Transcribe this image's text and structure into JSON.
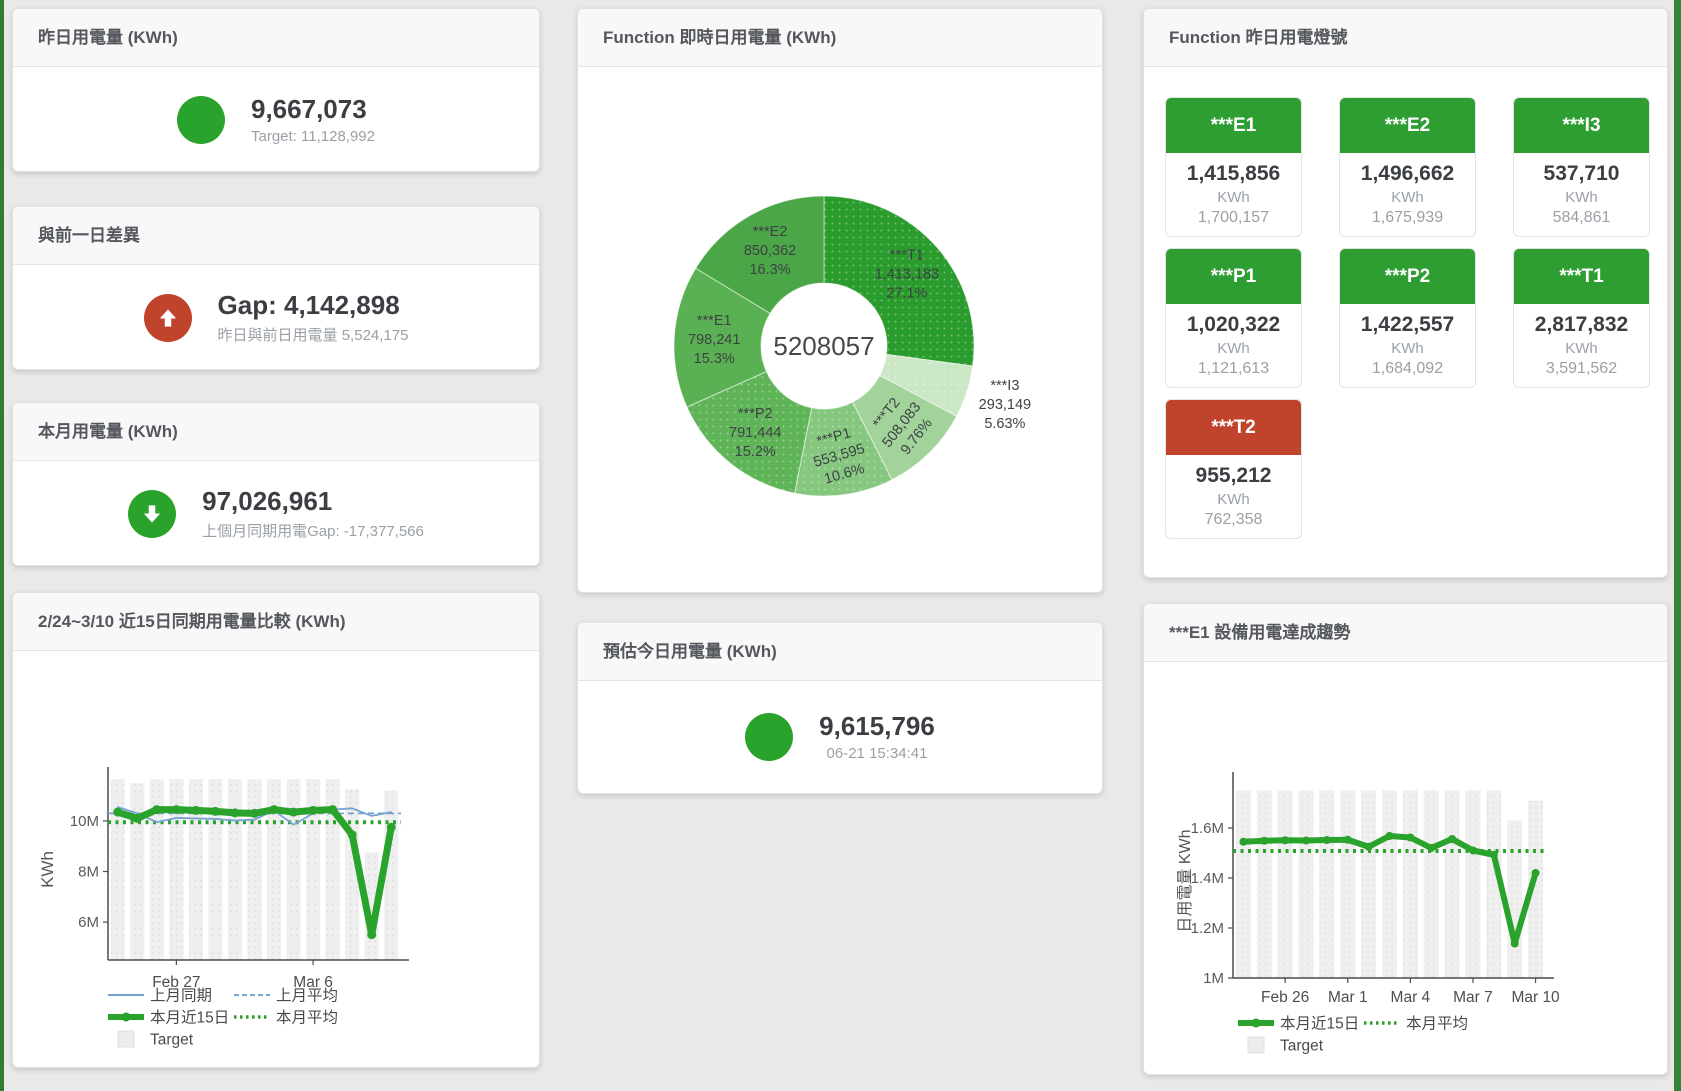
{
  "accent": {
    "green": "#2aa32c",
    "red": "#c0432c",
    "tile_green": "#2e9d32",
    "tile_red": "#c0432c",
    "blue": "#76a3d4",
    "bar_gray": "#ededed",
    "strip_left": "#2e7d32",
    "strip_right": "#35843a"
  },
  "stat_cards": [
    {
      "title": "昨日用電量 (KWh)",
      "value": "9,667,073",
      "subtitle": "Target: 11,128,992",
      "icon": "circle",
      "status": "green"
    },
    {
      "title": "與前一日差異",
      "value": "Gap: 4,142,898",
      "subtitle": "昨日與前日用電量 5,524,175",
      "icon": "arrow-up",
      "status": "red"
    },
    {
      "title": "本月用電量 (KWh)",
      "value": "97,026,961",
      "subtitle": "上個月同期用電Gap: -17,377,566",
      "icon": "arrow-down",
      "status": "green"
    },
    {
      "title": "預估今日用電量 (KWh)",
      "value": "9,615,796",
      "subtitle": "06-21 15:34:41",
      "icon": "circle",
      "status": "green"
    }
  ],
  "lamp_panel": {
    "title": "Function 昨日用電燈號",
    "tiles": [
      {
        "label": "***E1",
        "value": "1,415,856",
        "unit": "KWh",
        "target": "1,700,157",
        "status": "green"
      },
      {
        "label": "***E2",
        "value": "1,496,662",
        "unit": "KWh",
        "target": "1,675,939",
        "status": "green"
      },
      {
        "label": "***I3",
        "value": "537,710",
        "unit": "KWh",
        "target": "584,861",
        "status": "green"
      },
      {
        "label": "***P1",
        "value": "1,020,322",
        "unit": "KWh",
        "target": "1,121,613",
        "status": "green"
      },
      {
        "label": "***P2",
        "value": "1,422,557",
        "unit": "KWh",
        "target": "1,684,092",
        "status": "green"
      },
      {
        "label": "***T1",
        "value": "2,817,832",
        "unit": "KWh",
        "target": "3,591,562",
        "status": "green"
      },
      {
        "label": "***T2",
        "value": "955,212",
        "unit": "KWh",
        "target": "762,358",
        "status": "red"
      }
    ]
  },
  "chart_data": [
    {
      "type": "pie",
      "title": "Function 即時日用電量 (KWh)",
      "center_label": "5208057",
      "slices": [
        {
          "name": "***T1",
          "value": 1413183,
          "display": "1,413,183",
          "pct": "27.1%",
          "color": "#2a9b2d",
          "decal": true
        },
        {
          "name": "***I3",
          "value": 293149,
          "display": "293,149",
          "pct": "5.63%",
          "color": "#cbe7c6",
          "decal": true,
          "label_outside": true
        },
        {
          "name": "***T2",
          "value": 508083,
          "display": "508,083",
          "pct": "9.76%",
          "color": "#a1d39a",
          "rotate": -52
        },
        {
          "name": "***P1",
          "value": 553595,
          "display": "553,595",
          "pct": "10.6%",
          "color": "#86c77f",
          "decal": true,
          "rotate": -16
        },
        {
          "name": "***P2",
          "value": 791444,
          "display": "791,444",
          "pct": "15.2%",
          "color": "#5fb458",
          "decal": true
        },
        {
          "name": "***E1",
          "value": 798241,
          "display": "798,241",
          "pct": "15.3%",
          "color": "#5ab153"
        },
        {
          "name": "***E2",
          "value": 850362,
          "display": "850,362",
          "pct": "16.3%",
          "color": "#4aa646"
        }
      ]
    },
    {
      "type": "line",
      "title": "2/24~3/10 近15日同期用電量比較 (KWh)",
      "ylabel": "KWh",
      "ylim": [
        4.5,
        11.66
      ],
      "yticks": [
        {
          "v": 6,
          "label": "6M"
        },
        {
          "v": 8,
          "label": "8M"
        },
        {
          "v": 10,
          "label": "10M"
        }
      ],
      "xticks": [
        {
          "i": 3,
          "label": "Feb 27"
        },
        {
          "i": 10,
          "label": "Mar 6"
        }
      ],
      "n": 15,
      "series": [
        {
          "name": "Target",
          "kind": "bar",
          "color": "#ededed",
          "values": [
            11.65,
            11.5,
            11.65,
            11.65,
            11.65,
            11.65,
            11.65,
            11.65,
            11.65,
            11.65,
            11.65,
            11.65,
            11.25,
            8.75,
            11.2
          ]
        },
        {
          "name": "上月平均",
          "kind": "hline",
          "style": "dash",
          "color": "#76a3d4",
          "value": 10.3
        },
        {
          "name": "本月平均",
          "kind": "hline",
          "style": "dots",
          "color": "#2aa32c",
          "value": 9.95
        },
        {
          "name": "上月同期",
          "kind": "line",
          "color": "#76a3d4",
          "width": 1.8,
          "values": [
            10.55,
            10.3,
            9.95,
            10.12,
            10.1,
            10.08,
            10.02,
            10.05,
            10.42,
            9.85,
            10.3,
            10.45,
            10.5,
            10.2,
            10.35
          ]
        },
        {
          "name": "本月近15日",
          "kind": "line",
          "color": "#2aa32c",
          "width": 7,
          "marker": 4.5,
          "values": [
            10.35,
            10.1,
            10.45,
            10.45,
            10.42,
            10.38,
            10.32,
            10.3,
            10.45,
            10.35,
            10.42,
            10.45,
            9.45,
            5.5,
            9.75
          ]
        }
      ],
      "legend": [
        {
          "label": "上月同期",
          "swatch": "line",
          "color": "#76a3d4"
        },
        {
          "label": "上月平均",
          "swatch": "dash",
          "color": "#76a3d4"
        },
        {
          "label": "本月近15日",
          "swatch": "thick",
          "color": "#2aa32c"
        },
        {
          "label": "本月平均",
          "swatch": "dots",
          "color": "#2aa32c"
        },
        {
          "label": "Target",
          "swatch": "rect",
          "color": "#ececec"
        }
      ]
    },
    {
      "type": "line",
      "title": "***E1 設備用電達成趨勢",
      "ylabel": "日用電量 KWh",
      "ylim": [
        1.0,
        1.776
      ],
      "yticks": [
        {
          "v": 1,
          "label": "1M"
        },
        {
          "v": 1.2,
          "label": "1.2M"
        },
        {
          "v": 1.4,
          "label": "1.4M"
        },
        {
          "v": 1.6,
          "label": "1.6M"
        }
      ],
      "xticks": [
        {
          "i": 2,
          "label": "Feb 26"
        },
        {
          "i": 5,
          "label": "Mar 1"
        },
        {
          "i": 8,
          "label": "Mar 4"
        },
        {
          "i": 11,
          "label": "Mar 7"
        },
        {
          "i": 14,
          "label": "Mar 10"
        }
      ],
      "n": 15,
      "series": [
        {
          "name": "Target",
          "kind": "bar",
          "color": "#ededed",
          "values": [
            1.75,
            1.75,
            1.75,
            1.75,
            1.75,
            1.75,
            1.75,
            1.75,
            1.75,
            1.75,
            1.75,
            1.75,
            1.75,
            1.63,
            1.71
          ]
        },
        {
          "name": "本月平均",
          "kind": "hline",
          "style": "dots",
          "color": "#2aa32c",
          "value": 1.508
        },
        {
          "name": "本月近15日",
          "kind": "line",
          "color": "#2aa32c",
          "width": 6,
          "marker": 4,
          "values": [
            1.545,
            1.549,
            1.551,
            1.55,
            1.552,
            1.553,
            1.525,
            1.568,
            1.562,
            1.52,
            1.556,
            1.51,
            1.493,
            1.138,
            1.42
          ]
        }
      ],
      "legend": [
        {
          "label": "本月近15日",
          "swatch": "thick",
          "color": "#2aa32c"
        },
        {
          "label": "本月平均",
          "swatch": "dots",
          "color": "#2aa32c"
        },
        {
          "label": "Target",
          "swatch": "rect",
          "color": "#ececec"
        }
      ]
    }
  ]
}
